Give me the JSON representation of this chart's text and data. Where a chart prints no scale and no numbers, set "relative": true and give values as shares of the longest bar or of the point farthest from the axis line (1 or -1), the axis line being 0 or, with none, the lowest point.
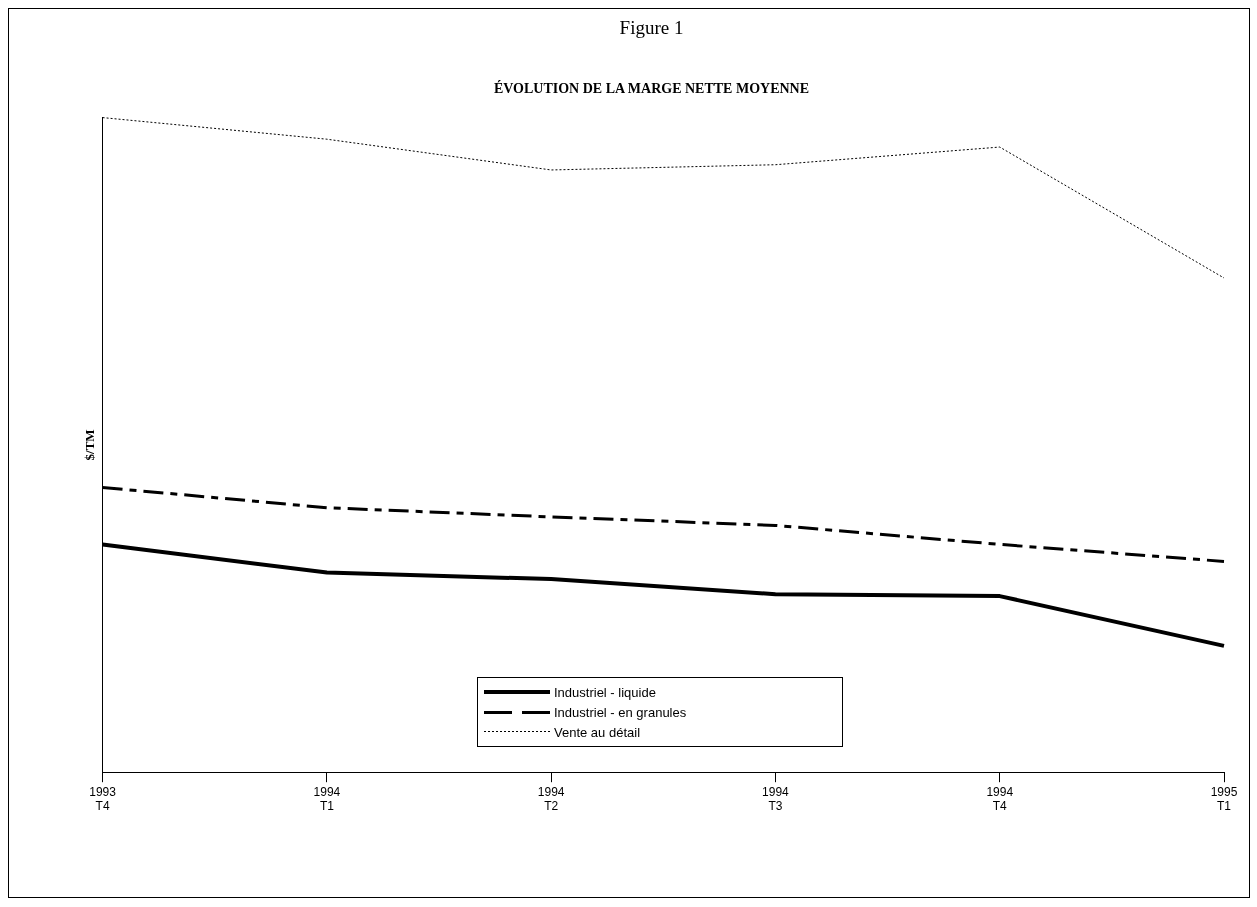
{
  "chart_data": {
    "type": "line",
    "title": "Figure 1",
    "subtitle": "ÉVOLUTION DE LA MARGE NETTE MOYENNE",
    "ylabel": "$/TM",
    "relative": true,
    "categories": [
      "1993 T4",
      "1994 T1",
      "1994 T2",
      "1994 T3",
      "1994 T4",
      "1995 T1"
    ],
    "series": [
      {
        "name": "Industriel - liquide",
        "color": "#000000",
        "line_style": "solid",
        "values": [
          0.348,
          0.305,
          0.295,
          0.272,
          0.269,
          0.193
        ]
      },
      {
        "name": "Industriel - en granules",
        "color": "#000000",
        "line_style": "dashed",
        "values": [
          0.435,
          0.404,
          0.39,
          0.377,
          0.348,
          0.322
        ]
      },
      {
        "name": "Vente au détail",
        "color": "#000000",
        "line_style": "dotted",
        "values": [
          1,
          0.967,
          0.92,
          0.928,
          0.955,
          0.755
        ]
      }
    ],
    "legend": "bottom",
    "grid": false,
    "marker": "none"
  }
}
